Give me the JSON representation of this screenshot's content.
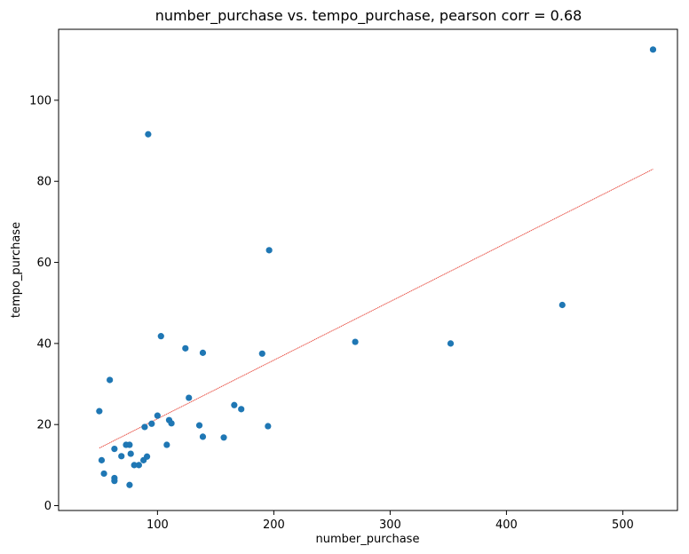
{
  "chart_data": {
    "type": "scatter",
    "title": "number_purchase vs. tempo_purchase, pearson corr = 0.68",
    "xlabel": "number_purchase",
    "ylabel": "tempo_purchase",
    "xlim": [
      15,
      547
    ],
    "ylim": [
      -1.2,
      117.5
    ],
    "xticks": [
      100,
      200,
      300,
      400,
      500
    ],
    "yticks": [
      0,
      20,
      40,
      60,
      80,
      100
    ],
    "grid": false,
    "point_color": "#1f77b4",
    "fit_color": "#e8554a",
    "points": [
      {
        "x": 92,
        "y": 91.6
      },
      {
        "x": 526,
        "y": 112.5
      },
      {
        "x": 196,
        "y": 63
      },
      {
        "x": 448,
        "y": 49.5
      },
      {
        "x": 103,
        "y": 41.8
      },
      {
        "x": 270,
        "y": 40.4
      },
      {
        "x": 352,
        "y": 40
      },
      {
        "x": 124,
        "y": 38.8
      },
      {
        "x": 139,
        "y": 37.7
      },
      {
        "x": 190,
        "y": 37.5
      },
      {
        "x": 59,
        "y": 31
      },
      {
        "x": 127,
        "y": 26.6
      },
      {
        "x": 166,
        "y": 24.8
      },
      {
        "x": 172,
        "y": 23.8
      },
      {
        "x": 50,
        "y": 23.3
      },
      {
        "x": 100,
        "y": 22.2
      },
      {
        "x": 110,
        "y": 21.1
      },
      {
        "x": 112,
        "y": 20.3
      },
      {
        "x": 95,
        "y": 20.2
      },
      {
        "x": 136,
        "y": 19.8
      },
      {
        "x": 195,
        "y": 19.6
      },
      {
        "x": 89,
        "y": 19.4
      },
      {
        "x": 139,
        "y": 17
      },
      {
        "x": 157,
        "y": 16.8
      },
      {
        "x": 73,
        "y": 15
      },
      {
        "x": 76,
        "y": 15
      },
      {
        "x": 108,
        "y": 15
      },
      {
        "x": 63,
        "y": 14
      },
      {
        "x": 77,
        "y": 12.8
      },
      {
        "x": 69,
        "y": 12.2
      },
      {
        "x": 91,
        "y": 12.1
      },
      {
        "x": 52,
        "y": 11.2
      },
      {
        "x": 88,
        "y": 11.2
      },
      {
        "x": 80,
        "y": 10
      },
      {
        "x": 84,
        "y": 10
      },
      {
        "x": 54,
        "y": 7.9
      },
      {
        "x": 63,
        "y": 6.8
      },
      {
        "x": 63,
        "y": 6.1
      },
      {
        "x": 76,
        "y": 5.1
      }
    ],
    "fit_line": {
      "x": [
        50,
        526
      ],
      "y": [
        14.2,
        83
      ]
    }
  }
}
